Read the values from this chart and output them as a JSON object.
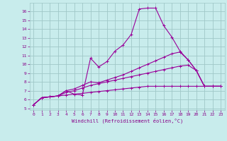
{
  "title": "",
  "xlabel": "Windchill (Refroidissement éolien,°C)",
  "ylabel": "",
  "bg_color": "#c8ecec",
  "grid_color": "#a0c8c8",
  "line_color": "#990099",
  "text_color": "#880088",
  "xlim": [
    -0.5,
    23.5
  ],
  "ylim": [
    4.8,
    17.0
  ],
  "yticks": [
    5,
    6,
    7,
    8,
    9,
    10,
    11,
    12,
    13,
    14,
    15,
    16
  ],
  "xticks": [
    0,
    1,
    2,
    3,
    4,
    5,
    6,
    7,
    8,
    9,
    10,
    11,
    12,
    13,
    14,
    15,
    16,
    17,
    18,
    19,
    20,
    21,
    22,
    23
  ],
  "line1_x": [
    0,
    1,
    2,
    3,
    4,
    5,
    6,
    7,
    8,
    9,
    10,
    11,
    12,
    13,
    14,
    15,
    16,
    17,
    18,
    19,
    20,
    21,
    22,
    23
  ],
  "line1_y": [
    5.4,
    6.2,
    6.3,
    6.4,
    7.0,
    6.6,
    6.5,
    10.7,
    9.7,
    10.3,
    11.5,
    12.2,
    13.4,
    16.3,
    16.4,
    16.4,
    14.4,
    13.1,
    11.5,
    10.5,
    9.3,
    7.5,
    7.5,
    7.5
  ],
  "line2_x": [
    0,
    1,
    2,
    3,
    4,
    5,
    6,
    7,
    8,
    9,
    10,
    11,
    12,
    13,
    14,
    15,
    16,
    17,
    18,
    19,
    20,
    21,
    22,
    23
  ],
  "line2_y": [
    5.4,
    6.2,
    6.3,
    6.4,
    7.0,
    7.2,
    7.6,
    8.0,
    7.9,
    8.2,
    8.5,
    8.8,
    9.2,
    9.6,
    10.0,
    10.4,
    10.8,
    11.2,
    11.4,
    10.5,
    9.3,
    7.5,
    7.5,
    7.5
  ],
  "line3_x": [
    0,
    1,
    2,
    3,
    4,
    5,
    6,
    7,
    8,
    9,
    10,
    11,
    12,
    13,
    14,
    15,
    16,
    17,
    18,
    19,
    20,
    21,
    22,
    23
  ],
  "line3_y": [
    5.4,
    6.2,
    6.3,
    6.4,
    6.8,
    7.0,
    7.3,
    7.6,
    7.8,
    8.0,
    8.2,
    8.4,
    8.6,
    8.8,
    9.0,
    9.2,
    9.4,
    9.6,
    9.8,
    9.9,
    9.3,
    7.5,
    7.5,
    7.5
  ],
  "line4_x": [
    0,
    1,
    2,
    3,
    4,
    5,
    6,
    7,
    8,
    9,
    10,
    11,
    12,
    13,
    14,
    15,
    16,
    17,
    18,
    19,
    20,
    21,
    22,
    23
  ],
  "line4_y": [
    5.4,
    6.2,
    6.3,
    6.4,
    6.5,
    6.6,
    6.7,
    6.8,
    6.9,
    7.0,
    7.1,
    7.2,
    7.3,
    7.4,
    7.5,
    7.5,
    7.5,
    7.5,
    7.5,
    7.5,
    7.5,
    7.5,
    7.5,
    7.5
  ]
}
